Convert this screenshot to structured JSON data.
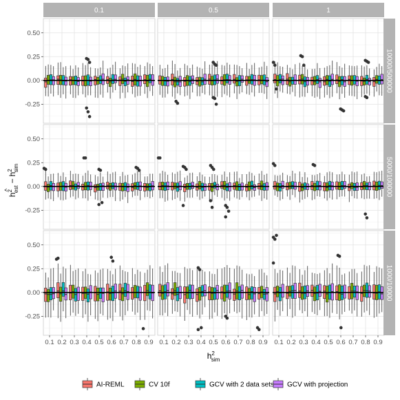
{
  "chart_data": {
    "type": "boxplot-facet-grid",
    "title": "",
    "xlabel": "h_sim^2",
    "ylabel": "ĥ_est^2 − h_sim^2",
    "axis_labels": {
      "x": {
        "base": "h",
        "sup": "2",
        "sub": "sim"
      },
      "y": {
        "hat_base": "h",
        "sup": "2",
        "sub": "est",
        "minus": "−",
        "base": "h",
        "sub2": "sim"
      }
    },
    "col_facets": [
      "0.1",
      "0.5",
      "1"
    ],
    "row_facets": [
      "10000/500000",
      "5000/100000",
      "1000/10000"
    ],
    "categories": [
      "0.1",
      "0.2",
      "0.3",
      "0.4",
      "0.5",
      "0.6",
      "0.7",
      "0.8",
      "0.9"
    ],
    "y_ticks": [
      -0.25,
      0.0,
      0.25,
      0.5
    ],
    "y_tick_labels": [
      "-0.25",
      "0.00",
      "0.25",
      "0.50"
    ],
    "ylim": [
      -0.45,
      0.65
    ],
    "reference_line": 0,
    "grid": true,
    "legend_position": "bottom",
    "series": [
      {
        "name": "AI-REML",
        "color": "#F8766D"
      },
      {
        "name": "CV 10f",
        "color": "#7CAE00"
      },
      {
        "name": "GCV with 2 data sets",
        "color": "#00BFC4"
      },
      {
        "name": "GCV with projection",
        "color": "#C77CFF"
      }
    ],
    "row_spread": {
      "10000/500000": 0.06,
      "5000/100000": 0.05,
      "1000/10000": 0.09
    },
    "outliers": [
      {
        "row": 0,
        "col": 0,
        "cat": 3,
        "series": 2,
        "y": [
          0.23,
          0.22,
          0.19,
          -0.29,
          -0.33,
          -0.38
        ]
      },
      {
        "row": 0,
        "col": 1,
        "cat": 1,
        "series": 2,
        "y": [
          -0.22,
          -0.24
        ]
      },
      {
        "row": 0,
        "col": 1,
        "cat": 4,
        "series": 2,
        "y": [
          0.19,
          0.17,
          0.16,
          -0.18,
          -0.19,
          -0.25
        ]
      },
      {
        "row": 0,
        "col": 2,
        "cat": 0,
        "series": 0,
        "y": [
          0.19,
          0.16,
          -0.09
        ]
      },
      {
        "row": 0,
        "col": 2,
        "cat": 2,
        "series": 1,
        "y": [
          0.26,
          0.25,
          0.16
        ]
      },
      {
        "row": 0,
        "col": 2,
        "cat": 5,
        "series": 2,
        "y": [
          -0.3,
          -0.31,
          -0.32
        ]
      },
      {
        "row": 0,
        "col": 2,
        "cat": 7,
        "series": 2,
        "y": [
          0.21,
          0.2,
          0.19,
          -0.17,
          -0.18
        ]
      },
      {
        "row": 1,
        "col": 0,
        "cat": 0,
        "series": 0,
        "y": [
          0.19,
          0.18
        ]
      },
      {
        "row": 1,
        "col": 0,
        "cat": 3,
        "series": 1,
        "y": [
          0.3,
          0.3
        ]
      },
      {
        "row": 1,
        "col": 0,
        "cat": 4,
        "series": 2,
        "y": [
          0.18,
          0.17,
          -0.17,
          -0.19
        ]
      },
      {
        "row": 1,
        "col": 0,
        "cat": 7,
        "series": 2,
        "y": [
          0.2,
          0.19,
          0.17
        ]
      },
      {
        "row": 1,
        "col": 1,
        "cat": 0,
        "series": 0,
        "y": [
          0.3,
          0.3
        ]
      },
      {
        "row": 1,
        "col": 1,
        "cat": 2,
        "series": 0,
        "y": [
          0.21,
          0.2,
          0.18,
          -0.2
        ]
      },
      {
        "row": 1,
        "col": 1,
        "cat": 4,
        "series": 1,
        "y": [
          0.22,
          0.2,
          0.18,
          -0.15,
          -0.22
        ]
      },
      {
        "row": 1,
        "col": 1,
        "cat": 5,
        "series": 2,
        "y": [
          -0.2,
          -0.22,
          -0.26,
          -0.32
        ]
      },
      {
        "row": 1,
        "col": 2,
        "cat": 0,
        "series": 0,
        "y": [
          0.24,
          0.22
        ]
      },
      {
        "row": 1,
        "col": 2,
        "cat": 3,
        "series": 1,
        "y": [
          0.23,
          0.22
        ]
      },
      {
        "row": 1,
        "col": 2,
        "cat": 7,
        "series": 2,
        "y": [
          -0.29,
          -0.33
        ]
      },
      {
        "row": 2,
        "col": 0,
        "cat": 1,
        "series": 0,
        "y": [
          0.35,
          0.36
        ]
      },
      {
        "row": 2,
        "col": 0,
        "cat": 5,
        "series": 2,
        "y": [
          0.37,
          0.33
        ]
      },
      {
        "row": 2,
        "col": 0,
        "cat": 8,
        "series": 0,
        "y": [
          -0.38
        ]
      },
      {
        "row": 2,
        "col": 1,
        "cat": 3,
        "series": 1,
        "y": [
          0.26,
          0.24,
          -0.37,
          -0.39
        ]
      },
      {
        "row": 2,
        "col": 1,
        "cat": 5,
        "series": 2,
        "y": [
          -0.25,
          -0.27
        ]
      },
      {
        "row": 2,
        "col": 1,
        "cat": 8,
        "series": 0,
        "y": [
          -0.37,
          -0.39
        ]
      },
      {
        "row": 2,
        "col": 2,
        "cat": 0,
        "series": 0,
        "y": [
          0.58,
          0.56,
          0.6,
          0.31
        ]
      },
      {
        "row": 2,
        "col": 2,
        "cat": 5,
        "series": 1,
        "y": [
          0.39,
          0.38,
          -0.37
        ]
      }
    ]
  }
}
